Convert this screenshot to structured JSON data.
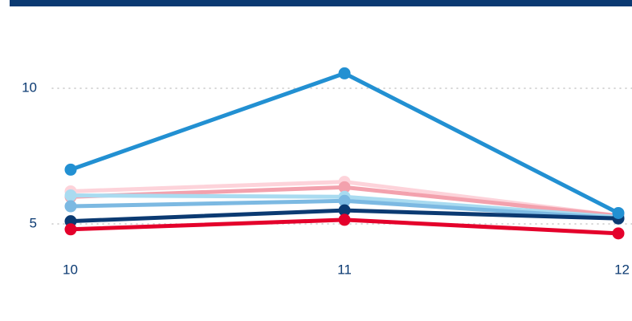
{
  "chart_data": {
    "type": "line",
    "x": [
      10,
      11,
      12
    ],
    "xlim": [
      10,
      12
    ],
    "xticks": [
      10,
      11,
      12
    ],
    "ylim": [
      4,
      12
    ],
    "yticks": [
      5,
      10
    ],
    "grid": true,
    "series": [
      {
        "color": "#fdd3da",
        "values": [
          6.2,
          6.55,
          5.3
        ]
      },
      {
        "color": "#f3a1ad",
        "values": [
          6.0,
          6.35,
          5.3
        ]
      },
      {
        "color": "#a9dbf0",
        "values": [
          6.05,
          6.0,
          5.25
        ]
      },
      {
        "color": "#7cb9e2",
        "values": [
          5.65,
          5.85,
          5.2
        ]
      },
      {
        "color": "#0b3a72",
        "values": [
          5.1,
          5.5,
          5.2
        ]
      },
      {
        "color": "#e4002b",
        "values": [
          4.8,
          5.15,
          4.65
        ]
      },
      {
        "color": "#2290d2",
        "values": [
          7.0,
          10.55,
          5.4
        ]
      }
    ]
  }
}
